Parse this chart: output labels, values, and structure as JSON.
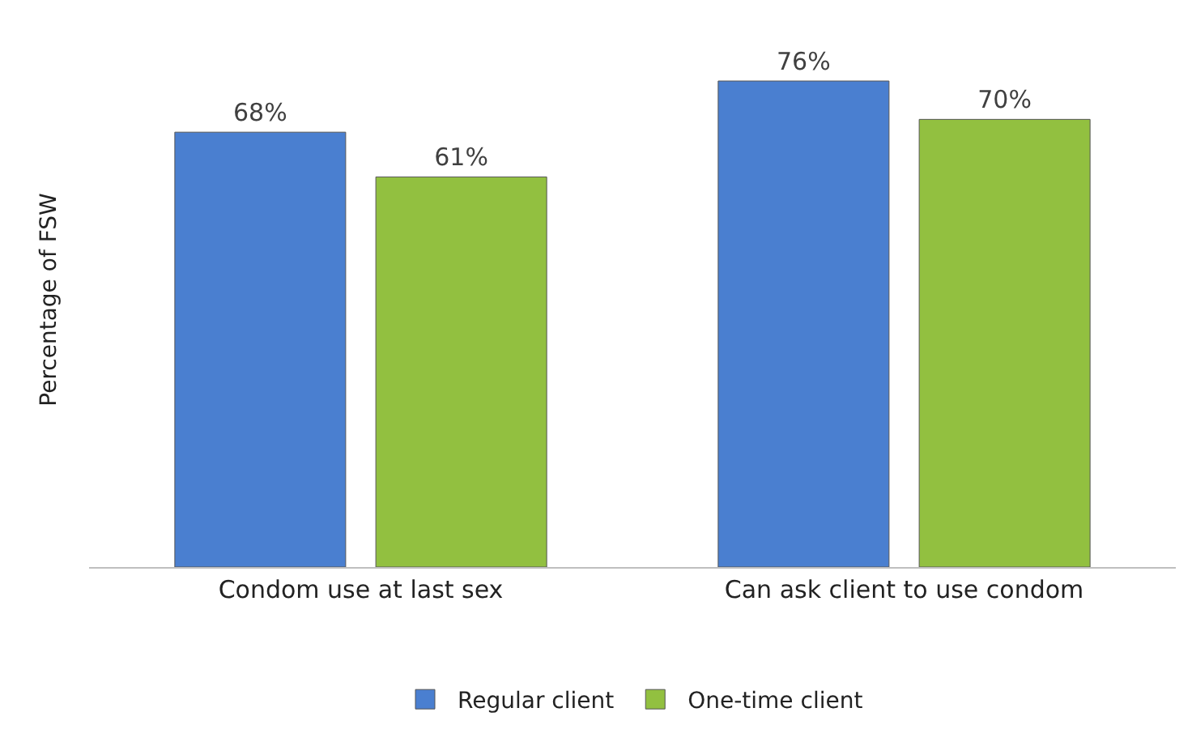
{
  "chart_data": {
    "type": "bar",
    "ylabel": "Percentage of FSW",
    "categories": [
      "Condom use at last sex",
      "Can ask client to use condom"
    ],
    "series": [
      {
        "name": "Regular client",
        "color": "#4a7fd0",
        "values": [
          68,
          76
        ],
        "value_labels": [
          "68%",
          "76%"
        ]
      },
      {
        "name": "One-time client",
        "color": "#92c040",
        "values": [
          61,
          70
        ],
        "value_labels": [
          "61%",
          "70%"
        ]
      }
    ],
    "legend": "bottom"
  }
}
